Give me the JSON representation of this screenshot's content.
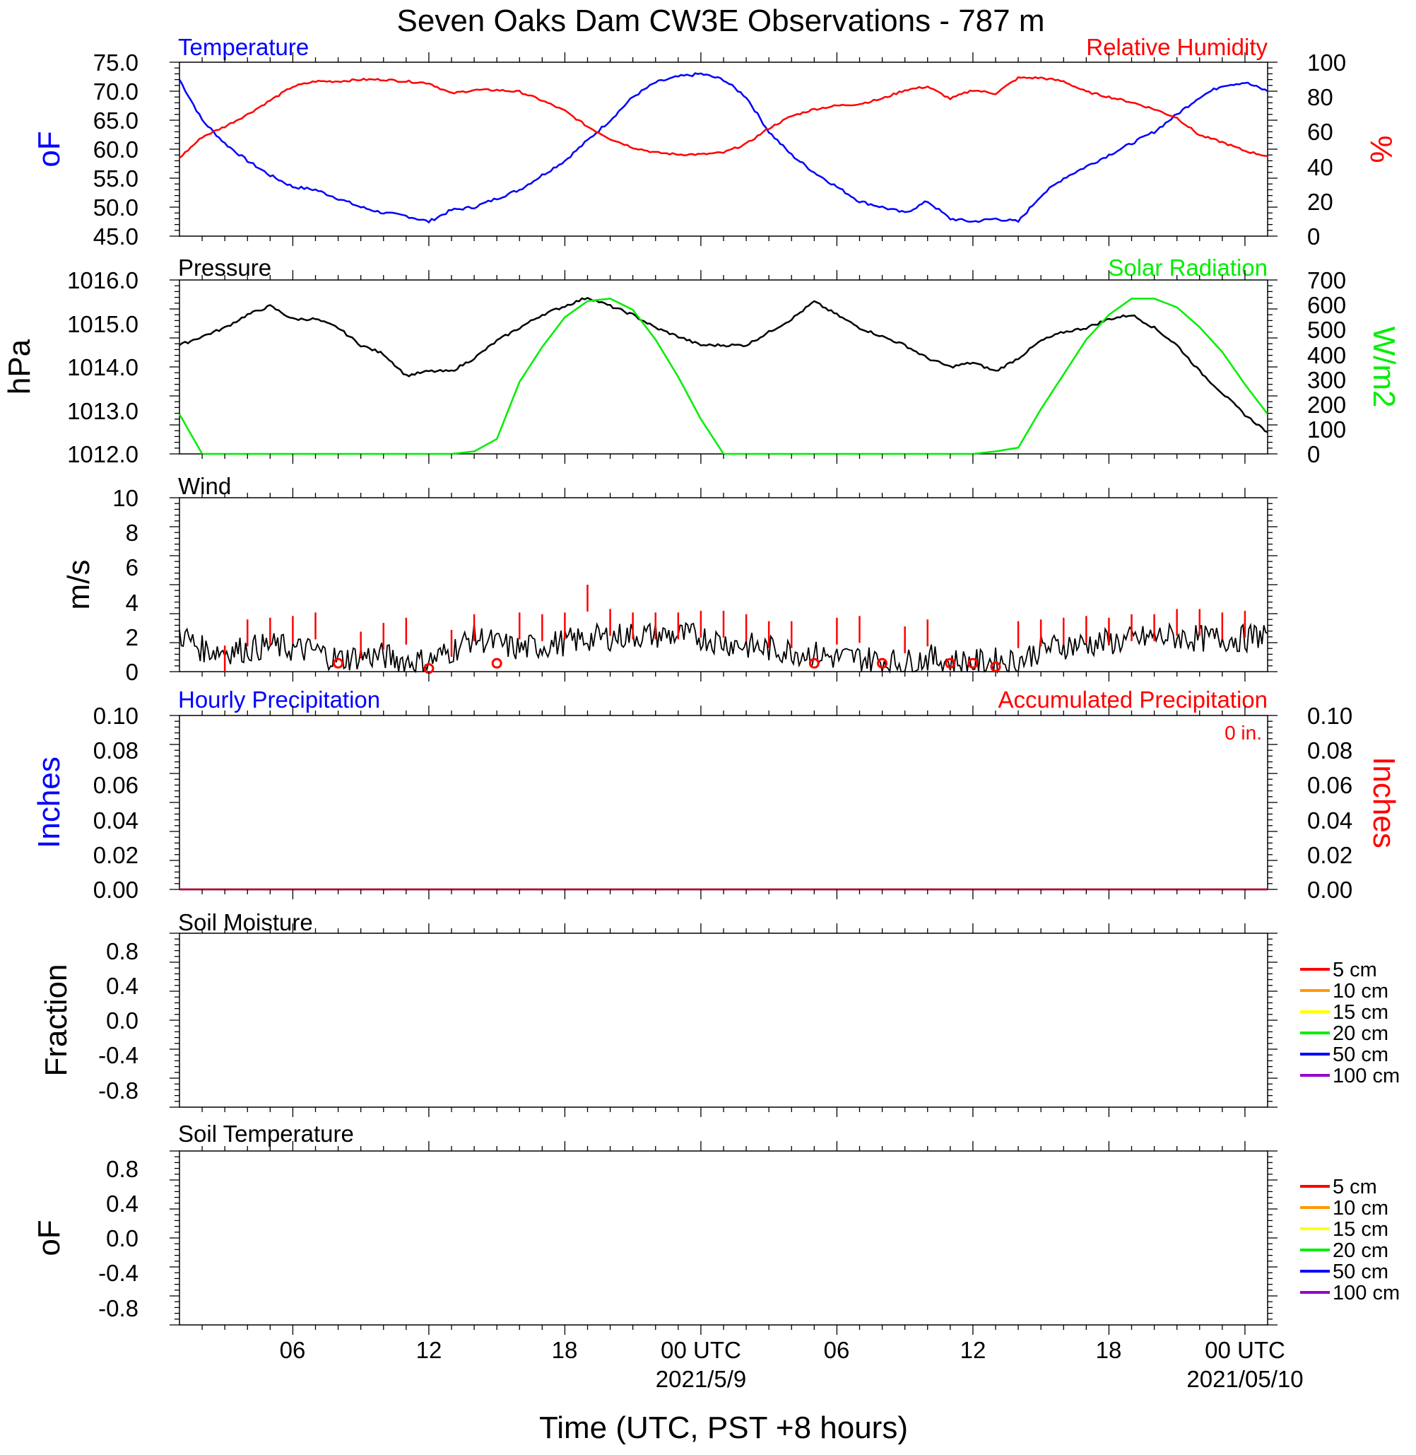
{
  "title": "Seven Oaks Dam CW3E Observations - 787 m",
  "x_axis": {
    "label": "Time (UTC, PST +8 hours)",
    "range_hours": [
      0,
      48
    ],
    "major_ticks": [
      {
        "h": 5,
        "label": "06"
      },
      {
        "h": 11,
        "label": "12"
      },
      {
        "h": 17,
        "label": "18"
      },
      {
        "h": 23,
        "label": "00 UTC"
      },
      {
        "h": 29,
        "label": "06"
      },
      {
        "h": 35,
        "label": "12"
      },
      {
        "h": 41,
        "label": "18"
      },
      {
        "h": 47,
        "label": "00 UTC"
      }
    ],
    "date_labels": [
      {
        "h": 23,
        "label": "2021/5/9"
      },
      {
        "h": 47,
        "label": "2021/05/10"
      }
    ]
  },
  "colors": {
    "temperature": "#0000ff",
    "humidity": "#ff0000",
    "pressure": "#000000",
    "solar": "#00ee00",
    "wind": "#000000",
    "gust": "#ff0000",
    "hourly": "#0000ff",
    "accum": "#ff0000"
  },
  "panels": {
    "temp_rh": {
      "left_title": "Temperature",
      "right_title": "Relative Humidity",
      "left_unit": "oF",
      "right_unit": "%",
      "left_ticks": [
        "75.0",
        "70.0",
        "65.0",
        "60.0",
        "55.0",
        "50.0",
        "45.0"
      ],
      "right_ticks": [
        "100",
        "80",
        "60",
        "40",
        "20",
        "0"
      ]
    },
    "pressure_solar": {
      "left_title": "Pressure",
      "right_title": "Solar Radiation",
      "left_unit": "hPa",
      "right_unit": "W/m2",
      "left_ticks": [
        "1016.0",
        "1015.0",
        "1014.0",
        "1013.0",
        "1012.0"
      ],
      "right_ticks": [
        "700",
        "600",
        "500",
        "400",
        "300",
        "200",
        "100",
        "0"
      ]
    },
    "wind": {
      "left_title": "Wind",
      "left_unit": "m/s",
      "left_ticks": [
        "10",
        "8",
        "6",
        "4",
        "2",
        "0"
      ]
    },
    "precip": {
      "left_title": "Hourly Precipitation",
      "right_title": "Accumulated Precipitation",
      "accum_total": "0 in.",
      "left_unit": "Inches",
      "right_unit": "Inches",
      "left_ticks": [
        "0.10",
        "0.08",
        "0.06",
        "0.04",
        "0.02",
        "0.00"
      ],
      "right_ticks": [
        "0.10",
        "0.08",
        "0.06",
        "0.04",
        "0.02",
        "0.00"
      ]
    },
    "soil_moisture": {
      "left_title": "Soil Moisture",
      "left_unit": "Fraction",
      "left_ticks": [
        "0.8",
        "0.4",
        "0.0",
        "-0.4",
        "-0.8"
      ],
      "legend": [
        {
          "label": "5 cm",
          "color": "#ff0000"
        },
        {
          "label": "10 cm",
          "color": "#ff9900"
        },
        {
          "label": "15 cm",
          "color": "#ffff00"
        },
        {
          "label": "20 cm",
          "color": "#00ee00"
        },
        {
          "label": "50 cm",
          "color": "#0000ff"
        },
        {
          "label": "100 cm",
          "color": "#9900cc"
        }
      ]
    },
    "soil_temperature": {
      "left_title": "Soil Temperature",
      "left_unit": "oF",
      "left_ticks": [
        "0.8",
        "0.4",
        "0.0",
        "-0.4",
        "-0.8"
      ],
      "legend": [
        {
          "label": "5 cm",
          "color": "#ff0000"
        },
        {
          "label": "10 cm",
          "color": "#ff9900"
        },
        {
          "label": "15 cm",
          "color": "#ffff00"
        },
        {
          "label": "20 cm",
          "color": "#00ee00"
        },
        {
          "label": "50 cm",
          "color": "#0000ff"
        },
        {
          "label": "100 cm",
          "color": "#9900cc"
        }
      ]
    }
  },
  "chart_data": [
    {
      "type": "line",
      "title": "Temperature",
      "ylabel": "oF",
      "ylim": [
        45,
        75
      ],
      "x_units": "hours since 2021-05-08 01:00 UTC",
      "series": [
        {
          "name": "Temperature",
          "x": [
            0,
            1,
            2,
            3,
            4,
            5,
            6,
            7,
            8,
            9,
            10,
            11,
            12,
            13,
            14,
            15,
            16,
            17,
            18,
            19,
            20,
            21,
            22,
            23,
            24,
            25,
            26,
            27,
            28,
            29,
            30,
            31,
            32,
            33,
            34,
            35,
            36,
            37,
            38,
            39,
            40,
            41,
            42,
            43,
            44,
            45,
            46,
            47,
            48
          ],
          "y": [
            72,
            65,
            61,
            58,
            55.5,
            53.5,
            53,
            51.5,
            50,
            49,
            48.5,
            47.5,
            49.5,
            50,
            51.5,
            53,
            55.5,
            58,
            61.5,
            65,
            69,
            71.5,
            72.5,
            73,
            72,
            69,
            63,
            59,
            56,
            53.5,
            51,
            50,
            49,
            51,
            48,
            47.5,
            48,
            47.5,
            52,
            55,
            57,
            59,
            61,
            63,
            66,
            69,
            71,
            71.5,
            70
          ]
        }
      ]
    },
    {
      "type": "line",
      "title": "Relative Humidity",
      "ylabel": "%",
      "ylim": [
        0,
        100
      ],
      "x_units": "hours since 2021-05-08 01:00 UTC",
      "series": [
        {
          "name": "Relative Humidity",
          "x": [
            0,
            1,
            2,
            3,
            4,
            5,
            6,
            7,
            8,
            9,
            10,
            11,
            12,
            13,
            14,
            15,
            16,
            17,
            18,
            19,
            20,
            21,
            22,
            23,
            24,
            25,
            26,
            27,
            28,
            29,
            30,
            31,
            32,
            33,
            34,
            35,
            36,
            37,
            38,
            39,
            40,
            41,
            42,
            43,
            44,
            45,
            46,
            47,
            48
          ],
          "y": [
            45,
            57,
            63,
            70,
            78,
            86,
            89,
            89,
            90,
            90,
            89,
            88,
            82,
            84,
            84,
            83,
            78,
            72,
            63,
            56,
            51,
            48,
            47,
            47,
            48,
            53,
            62,
            69,
            73,
            75,
            76,
            79,
            84,
            86,
            79,
            84,
            82,
            91,
            91,
            89,
            83,
            80,
            77,
            73,
            68,
            58,
            54,
            49,
            46
          ]
        }
      ]
    },
    {
      "type": "line",
      "title": "Pressure",
      "ylabel": "hPa",
      "ylim": [
        1012,
        1016
      ],
      "x_units": "hours since 2021-05-08 01:00 UTC",
      "series": [
        {
          "name": "Pressure",
          "x": [
            0,
            1,
            2,
            3,
            4,
            5,
            6,
            7,
            8,
            9,
            10,
            11,
            12,
            13,
            14,
            15,
            16,
            17,
            18,
            19,
            20,
            21,
            22,
            23,
            24,
            25,
            26,
            27,
            28,
            29,
            30,
            31,
            32,
            33,
            34,
            35,
            36,
            37,
            38,
            39,
            40,
            41,
            42,
            43,
            44,
            45,
            46,
            47,
            48
          ],
          "y": [
            1014.5,
            1014.7,
            1014.9,
            1015.2,
            1015.4,
            1015.1,
            1015.1,
            1014.9,
            1014.5,
            1014.3,
            1013.8,
            1013.9,
            1013.9,
            1014.2,
            1014.6,
            1014.9,
            1015.2,
            1015.4,
            1015.6,
            1015.4,
            1015.2,
            1014.9,
            1014.7,
            1014.5,
            1014.5,
            1014.5,
            1014.8,
            1015.1,
            1015.5,
            1015.2,
            1014.9,
            1014.7,
            1014.5,
            1014.2,
            1014,
            1014.1,
            1013.9,
            1014.2,
            1014.6,
            1014.8,
            1014.9,
            1015.1,
            1015.2,
            1014.9,
            1014.5,
            1013.9,
            1013.4,
            1012.9,
            1012.5
          ]
        }
      ]
    },
    {
      "type": "line",
      "title": "Solar Radiation",
      "ylabel": "W/m2",
      "ylim": [
        0,
        700
      ],
      "x_units": "hours since 2021-05-08 01:00 UTC",
      "series": [
        {
          "name": "Solar Radiation",
          "x": [
            0,
            1,
            2,
            3,
            4,
            5,
            6,
            7,
            8,
            9,
            10,
            11,
            12,
            13,
            14,
            15,
            16,
            17,
            18,
            19,
            20,
            21,
            22,
            23,
            24,
            25,
            26,
            27,
            28,
            29,
            30,
            31,
            32,
            33,
            34,
            35,
            36,
            37,
            38,
            39,
            40,
            41,
            42,
            43,
            44,
            45,
            46,
            47,
            48
          ],
          "y": [
            160,
            0,
            0,
            0,
            0,
            0,
            0,
            0,
            0,
            0,
            0,
            0,
            0,
            10,
            60,
            290,
            430,
            550,
            615,
            625,
            580,
            460,
            310,
            140,
            0,
            0,
            0,
            0,
            0,
            0,
            0,
            0,
            0,
            0,
            0,
            0,
            10,
            25,
            180,
            320,
            460,
            560,
            625,
            625,
            590,
            510,
            410,
            280,
            160
          ]
        }
      ]
    },
    {
      "type": "line",
      "title": "Wind",
      "ylabel": "m/s",
      "ylim": [
        0,
        10
      ],
      "x_units": "hours since 2021-05-08 01:00 UTC",
      "series": [
        {
          "name": "Wind speed",
          "x": [
            0,
            1,
            2,
            3,
            4,
            5,
            6,
            7,
            8,
            9,
            10,
            11,
            12,
            13,
            14,
            15,
            16,
            17,
            18,
            19,
            20,
            21,
            22,
            23,
            24,
            25,
            26,
            27,
            28,
            29,
            30,
            31,
            32,
            33,
            34,
            35,
            36,
            37,
            38,
            39,
            40,
            41,
            42,
            43,
            44,
            45,
            46,
            47,
            48
          ],
          "y": [
            2.2,
            1.3,
            1.2,
            1.3,
            1.5,
            1.3,
            1.2,
            0.7,
            0.9,
            0.9,
            0.6,
            0.6,
            1.2,
            2,
            1.6,
            1.3,
            1.5,
            1.7,
            1.9,
            2,
            2.1,
            2.1,
            2.1,
            2,
            1.7,
            1.5,
            1.3,
            1.2,
            1,
            0.8,
            0.8,
            0.6,
            0.5,
            0.8,
            0.6,
            0.5,
            0.6,
            0.6,
            1.3,
            1.5,
            1.6,
            1.7,
            1.8,
            2,
            2,
            1.9,
            1.9,
            1.9,
            2.2
          ]
        },
        {
          "name": "Gusts",
          "x": [
            2,
            3,
            4,
            5,
            6,
            7,
            8,
            9,
            10,
            11,
            12,
            13,
            14,
            15,
            16,
            17,
            18,
            19,
            20,
            21,
            22,
            23,
            24,
            25,
            26,
            27,
            28,
            29,
            30,
            31,
            32,
            33,
            34,
            35,
            36,
            37,
            38,
            39,
            40,
            41,
            42,
            43,
            44,
            45,
            46,
            47
          ],
          "y": [
            1.5,
            3,
            3.1,
            3.2,
            3.4,
            0.4,
            2.3,
            2.8,
            3.1,
            0.1,
            2.4,
            3.3,
            0.4,
            3.4,
            3.3,
            3.4,
            5,
            3.6,
            3.4,
            3.4,
            3.4,
            3.5,
            3.5,
            3.3,
            2.9,
            2.9,
            0.4,
            3.1,
            3.2,
            0.4,
            2.6,
            3,
            0.4,
            0.4,
            0.2,
            2.9,
            3,
            3.1,
            3.2,
            3.1,
            3.3,
            3.3,
            3.6,
            3.6,
            3.4,
            3.5
          ]
        }
      ]
    },
    {
      "type": "line",
      "title": "Hourly Precipitation",
      "ylabel": "Inches",
      "ylim": [
        0,
        0.1
      ],
      "x_units": "hours since 2021-05-08 01:00 UTC",
      "series": [
        {
          "name": "Hourly Precipitation",
          "x": [
            0,
            48
          ],
          "y": [
            0,
            0
          ]
        },
        {
          "name": "Accumulated Precipitation",
          "x": [
            0,
            48
          ],
          "y": [
            0,
            0
          ]
        }
      ]
    },
    {
      "type": "line",
      "title": "Soil Moisture",
      "ylabel": "Fraction",
      "ylim": [
        -1,
        1
      ],
      "series": []
    },
    {
      "type": "line",
      "title": "Soil Temperature",
      "ylabel": "oF",
      "ylim": [
        -1,
        1
      ],
      "series": []
    }
  ]
}
